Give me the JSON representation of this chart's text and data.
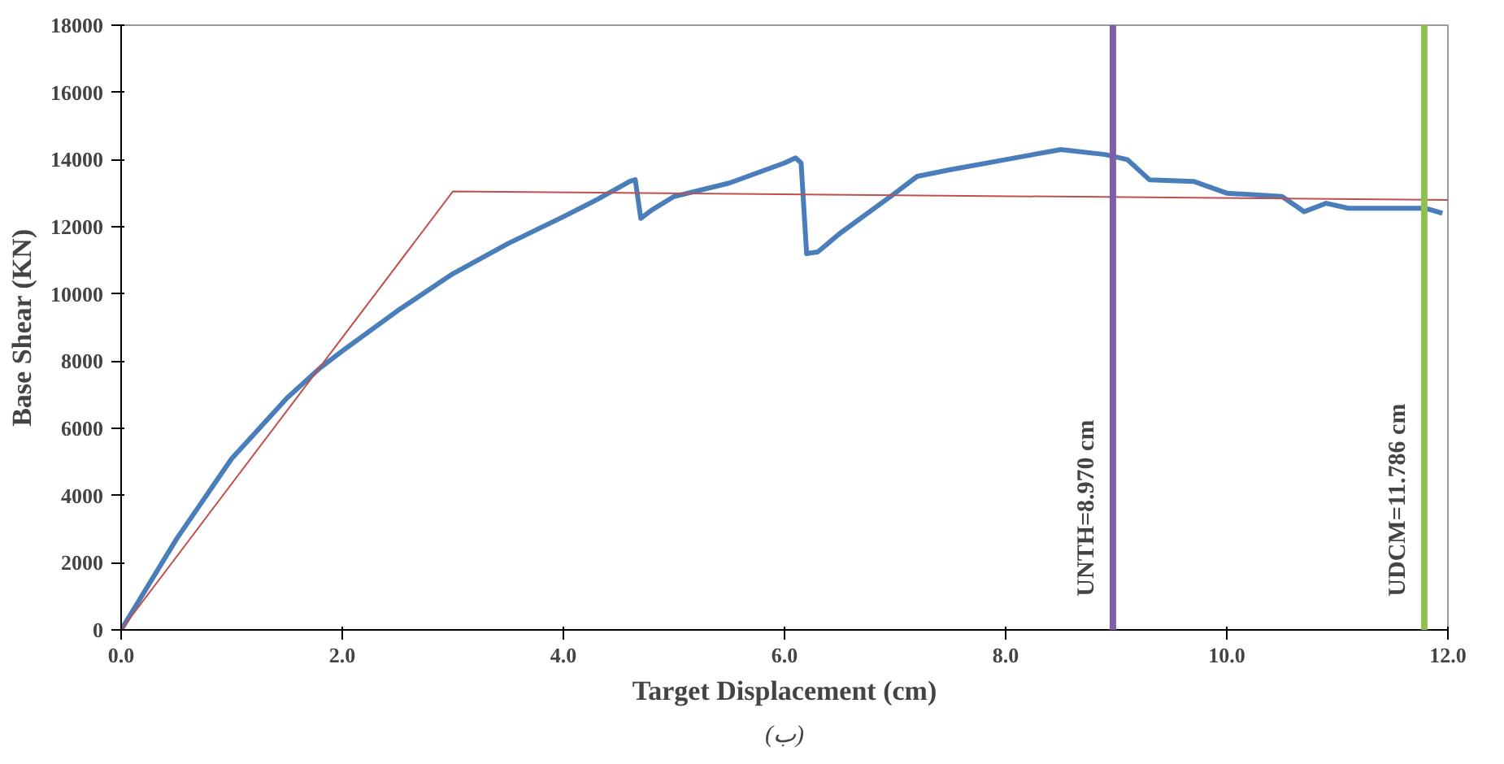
{
  "chart_data": {
    "type": "line",
    "xlabel": "Target Displacement (cm)",
    "ylabel": "Base Shear (KN)",
    "xlim": [
      0,
      12
    ],
    "ylim": [
      0,
      18000
    ],
    "xticks": [
      {
        "value": 0,
        "label": "0.0"
      },
      {
        "value": 2,
        "label": "2.0"
      },
      {
        "value": 4,
        "label": "4.0"
      },
      {
        "value": 6,
        "label": "6.0"
      },
      {
        "value": 8,
        "label": "8.0"
      },
      {
        "value": 10,
        "label": "10.0"
      },
      {
        "value": 12,
        "label": "12.0"
      }
    ],
    "yticks": [
      0,
      2000,
      4000,
      6000,
      8000,
      10000,
      12000,
      14000,
      16000,
      18000
    ],
    "grid": false,
    "series": [
      {
        "color": "#4a7ebb",
        "x": [
          0,
          0.5,
          1.0,
          1.5,
          1.8,
          2.0,
          2.5,
          3.0,
          3.5,
          4.0,
          4.3,
          4.6,
          4.65,
          4.7,
          4.8,
          5.0,
          5.5,
          6.0,
          6.1,
          6.15,
          6.2,
          6.3,
          6.5,
          7.0,
          7.2,
          7.5,
          8.0,
          8.5,
          8.9,
          9.1,
          9.3,
          9.7,
          10.0,
          10.5,
          10.7,
          10.9,
          11.1,
          11.5,
          11.8,
          11.95
        ],
        "values": [
          0,
          2700,
          5100,
          6900,
          7800,
          8300,
          9500,
          10600,
          11500,
          12300,
          12800,
          13350,
          13400,
          12250,
          12500,
          12900,
          13300,
          13900,
          14050,
          13900,
          11200,
          11250,
          11800,
          13000,
          13500,
          13700,
          14000,
          14300,
          14150,
          14000,
          13400,
          13350,
          13000,
          12900,
          12450,
          12700,
          12550,
          12550,
          12550,
          12400
        ]
      },
      {
        "color": "#c0504d",
        "x": [
          0,
          3,
          12
        ],
        "values": [
          0,
          13050,
          12800
        ]
      }
    ],
    "ref_lines": [
      {
        "axis": "x",
        "value": 8.97,
        "label": "UNTH=8.970 cm",
        "color": "#7f5fa8"
      },
      {
        "axis": "x",
        "value": 11.786,
        "label": "UDCM=11.786 cm",
        "color": "#92c050"
      }
    ],
    "annotations": [
      "(ب)"
    ]
  }
}
